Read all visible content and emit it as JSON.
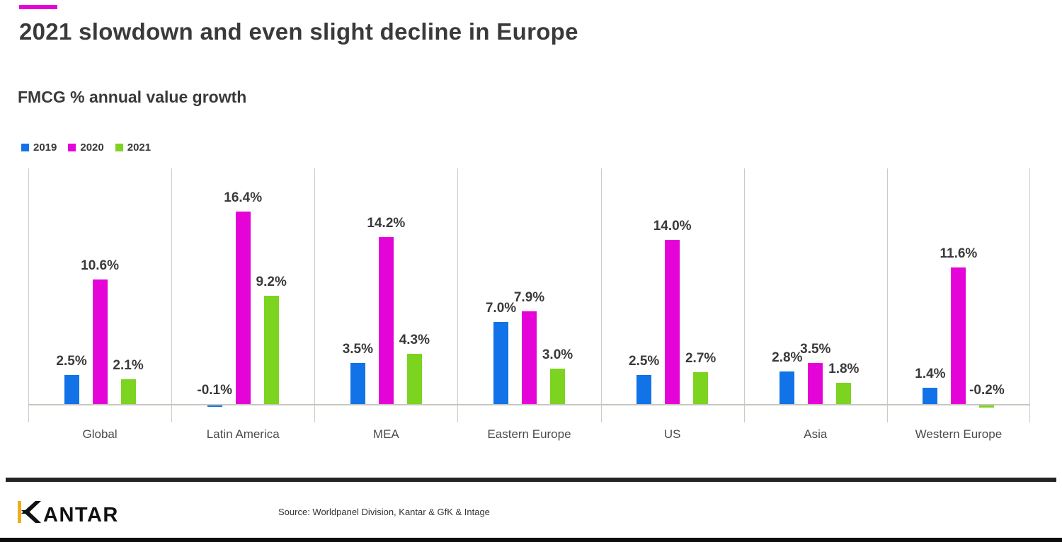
{
  "slide": {
    "title": "2021 slowdown and even slight decline in Europe",
    "subtitle": "FMCG % annual value growth",
    "accent_dash_color": "#E504D8"
  },
  "legend": [
    {
      "label": "2019",
      "color": "#1273E8"
    },
    {
      "label": "2020",
      "color": "#E504D8"
    },
    {
      "label": "2021",
      "color": "#7CD420"
    }
  ],
  "chart_data": {
    "type": "bar",
    "title": "FMCG % annual value growth",
    "xlabel": "",
    "ylabel": "FMCG % annual value growth",
    "value_suffix": "%",
    "ylim": [
      -0.5,
      17
    ],
    "grid": "vertical-panel-separators",
    "legend_position": "top-left",
    "categories": [
      "Global",
      "Latin America",
      "MEA",
      "Eastern Europe",
      "US",
      "Asia",
      "Western Europe"
    ],
    "series": [
      {
        "name": "2019",
        "color": "#1273E8",
        "values": [
          2.5,
          -0.1,
          3.5,
          7.0,
          2.5,
          2.8,
          1.4
        ]
      },
      {
        "name": "2020",
        "color": "#E504D8",
        "values": [
          10.6,
          16.4,
          14.2,
          7.9,
          14.0,
          3.5,
          11.6
        ]
      },
      {
        "name": "2021",
        "color": "#7CD420",
        "values": [
          2.1,
          9.2,
          4.3,
          3.0,
          2.7,
          1.8,
          -0.2
        ]
      }
    ],
    "data_labels": [
      [
        "2.5%",
        "10.6%",
        "2.1%"
      ],
      [
        "-0.1%",
        "16.4%",
        "9.2%"
      ],
      [
        "3.5%",
        "14.2%",
        "4.3%"
      ],
      [
        "7.0%",
        "7.9%",
        "3.0%"
      ],
      [
        "2.5%",
        "14.0%",
        "2.7%"
      ],
      [
        "2.8%",
        "3.5%",
        "1.8%"
      ],
      [
        "1.4%",
        "11.6%",
        "-0.2%"
      ]
    ]
  },
  "footer": {
    "logo": {
      "text": "KANTAR",
      "rest": "ANTAR",
      "accent_color": "#EFAD1E"
    },
    "source": "Source: Worldpanel Division, Kantar & GfK & Intage"
  }
}
